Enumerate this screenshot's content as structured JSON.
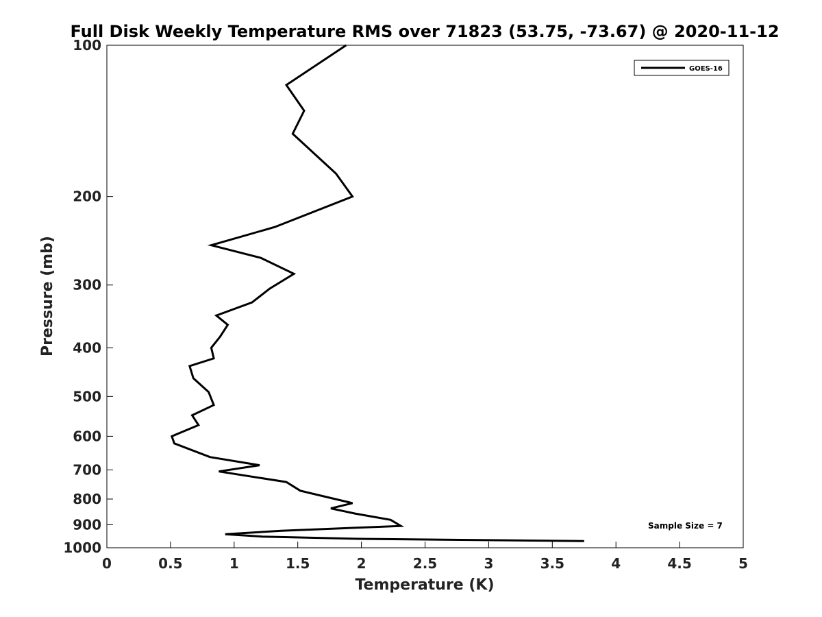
{
  "chart_data": {
    "type": "line",
    "title": "Full Disk Weekly Temperature RMS over 71823 (53.75, -73.67) @ 2020-11-12",
    "xlabel": "Temperature (K)",
    "ylabel": "Pressure (mb)",
    "xlim": [
      0,
      5
    ],
    "ylim": [
      100,
      1000
    ],
    "yscale": "log",
    "y_reversed": true,
    "xticks": [
      "0",
      "0.5",
      "1",
      "1.5",
      "2",
      "2.5",
      "3",
      "3.5",
      "4",
      "4.5",
      "5"
    ],
    "xtick_values": [
      0,
      0.5,
      1,
      1.5,
      2,
      2.5,
      3,
      3.5,
      4,
      4.5,
      5
    ],
    "yticks": [
      "100",
      "200",
      "300",
      "400",
      "500",
      "600",
      "700",
      "800",
      "900",
      "1000"
    ],
    "ytick_values": [
      100,
      200,
      300,
      400,
      500,
      600,
      700,
      800,
      900,
      1000
    ],
    "grid": false,
    "legend_position": "top-right",
    "annotation": "Sample Size = 7",
    "series": [
      {
        "name": "GOES-16",
        "color": "#000000",
        "x": [
          1.88,
          1.41,
          1.55,
          1.46,
          1.8,
          1.93,
          1.32,
          0.82,
          1.21,
          1.47,
          1.28,
          1.14,
          0.86,
          0.95,
          0.89,
          0.82,
          0.84,
          0.65,
          0.68,
          0.8,
          0.84,
          0.67,
          0.72,
          0.51,
          0.53,
          0.81,
          1.2,
          0.88,
          1.41,
          1.52,
          1.75,
          1.93,
          1.76,
          1.95,
          2.23,
          2.31,
          1.37,
          0.93,
          1.22,
          1.99,
          3.75
        ],
        "y": [
          100,
          120,
          135,
          150,
          180,
          200,
          230,
          250,
          265,
          285,
          305,
          325,
          345,
          360,
          380,
          400,
          420,
          435,
          460,
          490,
          520,
          545,
          570,
          600,
          620,
          660,
          685,
          705,
          740,
          770,
          795,
          815,
          835,
          855,
          880,
          905,
          925,
          940,
          950,
          960,
          970
        ]
      }
    ]
  }
}
